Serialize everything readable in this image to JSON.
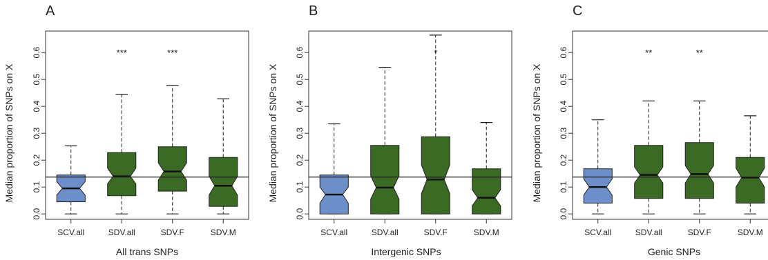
{
  "colors": {
    "scv": "#6d8fc9",
    "sdv": "#3b6a24",
    "reference_line": "#222222"
  },
  "chart_data": [
    {
      "type": "box",
      "panel_label": "A",
      "xlabel": "All trans SNPs",
      "ylabel": "Median proportion of SNPs on X",
      "ylim": [
        -0.02,
        0.68
      ],
      "yticks": [
        0.0,
        0.1,
        0.2,
        0.3,
        0.4,
        0.5,
        0.6
      ],
      "ytick_labels": [
        "0.0",
        "0.1",
        "0.2",
        "0.3",
        "0.4",
        "0.5",
        "0.6"
      ],
      "reference_line": 0.137,
      "categories": [
        "SCV.all",
        "SDV.all",
        "SDV.F",
        "SDV.M"
      ],
      "boxes": [
        {
          "name": "SCV.all",
          "group": "scv",
          "whisker_low": 0.0,
          "q1": 0.045,
          "notch_low": 0.07,
          "median": 0.095,
          "notch_high": 0.12,
          "q3": 0.145,
          "whisker_high": 0.253,
          "stars": ""
        },
        {
          "name": "SDV.all",
          "group": "sdv",
          "whisker_low": 0.0,
          "q1": 0.068,
          "notch_low": 0.112,
          "median": 0.14,
          "notch_high": 0.17,
          "q3": 0.228,
          "whisker_high": 0.445,
          "stars": "***"
        },
        {
          "name": "SDV.F",
          "group": "sdv",
          "whisker_low": 0.0,
          "q1": 0.085,
          "notch_low": 0.125,
          "median": 0.158,
          "notch_high": 0.19,
          "q3": 0.25,
          "whisker_high": 0.478,
          "stars": "***"
        },
        {
          "name": "SDV.M",
          "group": "sdv",
          "whisker_low": 0.0,
          "q1": 0.028,
          "notch_low": 0.07,
          "median": 0.105,
          "notch_high": 0.14,
          "q3": 0.21,
          "whisker_high": 0.428,
          "stars": ""
        }
      ]
    },
    {
      "type": "box",
      "panel_label": "B",
      "xlabel": "Intergenic SNPs",
      "ylabel": "Median proportion of SNPs on X",
      "ylim": [
        -0.02,
        0.68
      ],
      "yticks": [
        0.0,
        0.1,
        0.2,
        0.3,
        0.4,
        0.5,
        0.6
      ],
      "ytick_labels": [
        "0.0",
        "0.1",
        "0.2",
        "0.3",
        "0.4",
        "0.5",
        "0.6"
      ],
      "reference_line": 0.137,
      "categories": [
        "SCV.all",
        "SDV.all",
        "SDV.F",
        "SDV.M"
      ],
      "boxes": [
        {
          "name": "SCV.all",
          "group": "scv",
          "whisker_low": 0.0,
          "q1": 0.0,
          "notch_low": 0.04,
          "median": 0.072,
          "notch_high": 0.1,
          "q3": 0.145,
          "whisker_high": 0.335,
          "stars": ""
        },
        {
          "name": "SDV.all",
          "group": "sdv",
          "whisker_low": 0.0,
          "q1": 0.0,
          "notch_low": 0.055,
          "median": 0.098,
          "notch_high": 0.142,
          "q3": 0.255,
          "whisker_high": 0.545,
          "stars": ""
        },
        {
          "name": "SDV.F",
          "group": "sdv",
          "whisker_low": 0.0,
          "q1": 0.0,
          "notch_low": 0.075,
          "median": 0.128,
          "notch_high": 0.182,
          "q3": 0.287,
          "whisker_high": 0.665,
          "stars": "*"
        },
        {
          "name": "SDV.M",
          "group": "sdv",
          "whisker_low": 0.0,
          "q1": 0.0,
          "notch_low": 0.03,
          "median": 0.06,
          "notch_high": 0.09,
          "q3": 0.168,
          "whisker_high": 0.34,
          "stars": ""
        }
      ]
    },
    {
      "type": "box",
      "panel_label": "C",
      "xlabel": "Genic SNPs",
      "ylabel": "Median proportion of SNPs on X",
      "ylim": [
        -0.02,
        0.68
      ],
      "yticks": [
        0.0,
        0.1,
        0.2,
        0.3,
        0.4,
        0.5,
        0.6
      ],
      "ytick_labels": [
        "0.0",
        "0.1",
        "0.2",
        "0.3",
        "0.4",
        "0.5",
        "0.6"
      ],
      "reference_line": 0.137,
      "categories": [
        "SCV.all",
        "SDV.all",
        "SDV.F",
        "SDV.M"
      ],
      "boxes": [
        {
          "name": "SCV.all",
          "group": "scv",
          "whisker_low": 0.0,
          "q1": 0.04,
          "notch_low": 0.07,
          "median": 0.1,
          "notch_high": 0.13,
          "q3": 0.168,
          "whisker_high": 0.35,
          "stars": ""
        },
        {
          "name": "SDV.all",
          "group": "sdv",
          "whisker_low": 0.0,
          "q1": 0.058,
          "notch_low": 0.115,
          "median": 0.145,
          "notch_high": 0.175,
          "q3": 0.255,
          "whisker_high": 0.42,
          "stars": "**"
        },
        {
          "name": "SDV.F",
          "group": "sdv",
          "whisker_low": 0.0,
          "q1": 0.058,
          "notch_low": 0.115,
          "median": 0.148,
          "notch_high": 0.18,
          "q3": 0.265,
          "whisker_high": 0.42,
          "stars": "**"
        },
        {
          "name": "SDV.M",
          "group": "sdv",
          "whisker_low": 0.0,
          "q1": 0.04,
          "notch_low": 0.1,
          "median": 0.135,
          "notch_high": 0.17,
          "q3": 0.21,
          "whisker_high": 0.365,
          "stars": ""
        }
      ]
    }
  ]
}
